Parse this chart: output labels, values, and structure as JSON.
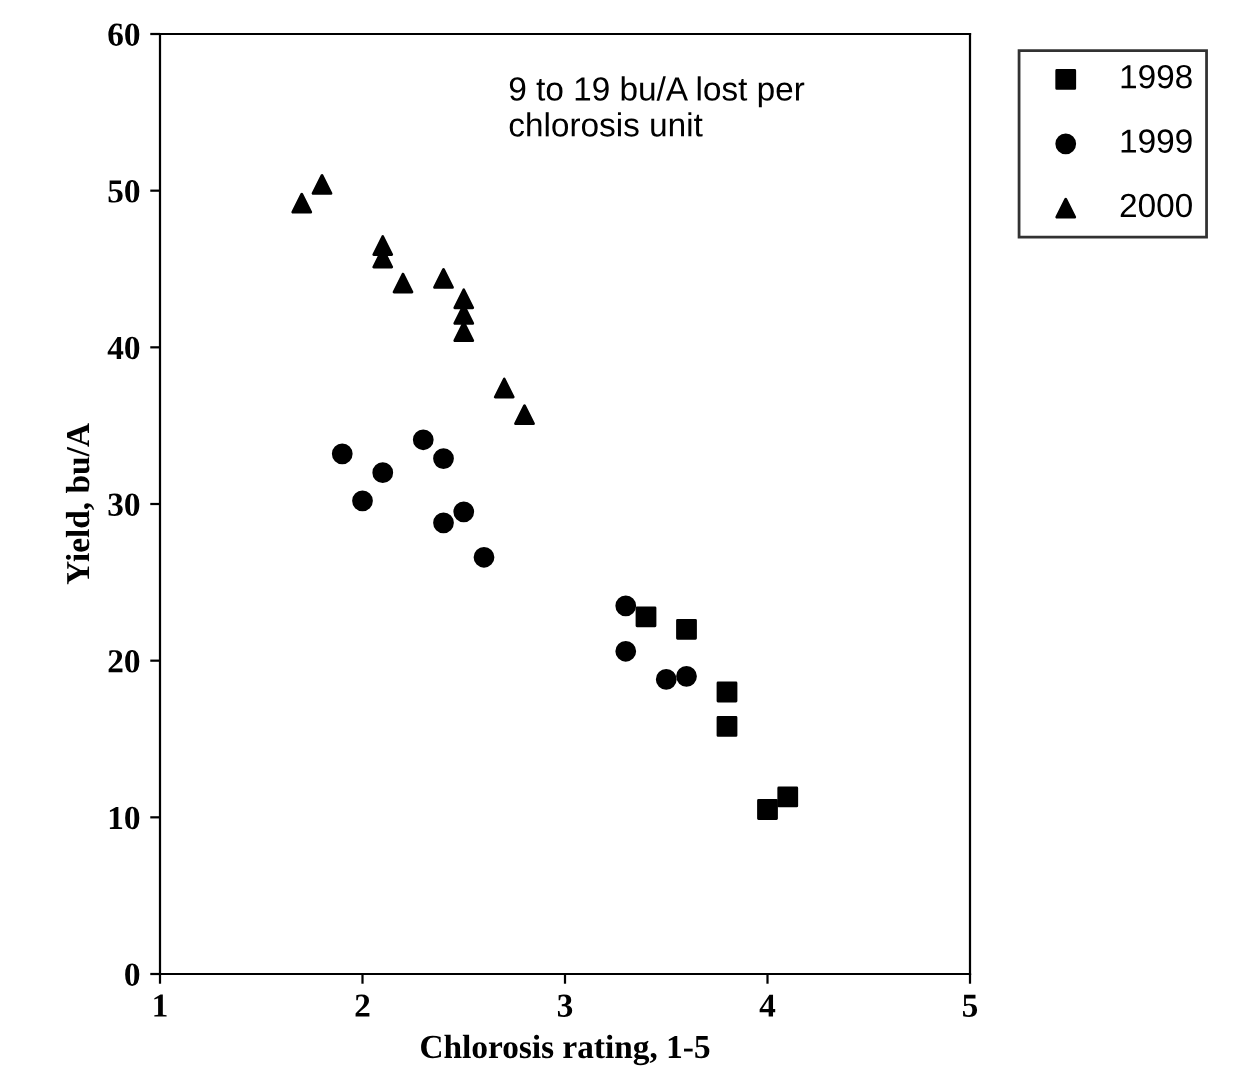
{
  "chart_data": {
    "type": "scatter",
    "xlabel": "Chlorosis rating, 1-5",
    "ylabel": "Yield, bu/A",
    "annotations": [
      "9 to 19 bu/A lost per\nchlorosis unit"
    ],
    "xlim": [
      1,
      5
    ],
    "xticks": [
      1,
      2,
      3,
      4,
      5
    ],
    "ylim": [
      0,
      60
    ],
    "yticks": [
      0,
      10,
      20,
      30,
      40,
      50,
      60
    ],
    "grid": false,
    "legend": "top right",
    "series": [
      {
        "name": "1998",
        "color": "#000000",
        "marker": "square",
        "x": [
          3.4,
          3.6,
          3.8,
          3.8,
          4.0,
          4.1
        ],
        "values": [
          22.8,
          22.0,
          18.0,
          15.8,
          10.5,
          11.3
        ]
      },
      {
        "name": "1999",
        "color": "#000000",
        "marker": "circle",
        "x": [
          1.9,
          2.0,
          2.1,
          2.3,
          2.4,
          2.4,
          2.5,
          2.6,
          3.3,
          3.3,
          3.5,
          3.6
        ],
        "values": [
          33.2,
          30.2,
          32.0,
          34.1,
          32.9,
          28.8,
          29.5,
          26.6,
          23.5,
          20.6,
          18.8,
          19.0
        ]
      },
      {
        "name": "2000",
        "color": "#000000",
        "marker": "triangle",
        "x": [
          1.7,
          1.8,
          2.1,
          2.1,
          2.2,
          2.4,
          2.5,
          2.5,
          2.5,
          2.7,
          2.8
        ],
        "values": [
          49.2,
          50.4,
          46.5,
          45.7,
          44.1,
          44.4,
          43.1,
          42.1,
          41.0,
          37.4,
          35.7
        ]
      }
    ]
  }
}
